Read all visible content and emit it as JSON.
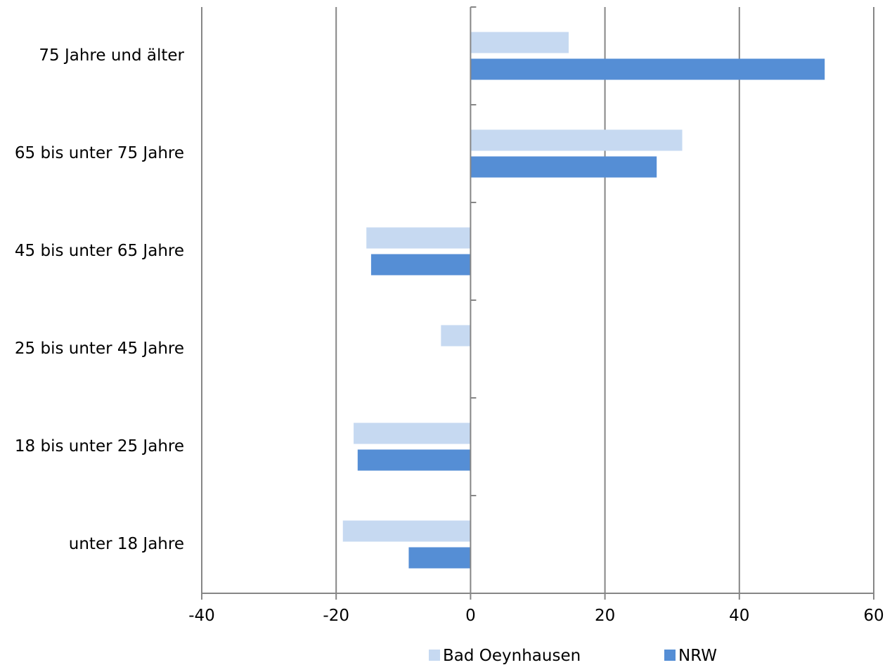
{
  "chart_data": {
    "type": "bar",
    "orientation": "horizontal",
    "categories": [
      "unter 18 Jahre",
      "18 bis unter 25 Jahre",
      "25 bis unter 45 Jahre",
      "45 bis unter 65 Jahre",
      "65 bis unter 75 Jahre",
      "75 Jahre und älter"
    ],
    "series": [
      {
        "name": "Bad Oeynhausen",
        "color": "#c6d9f1",
        "values": [
          -19.0,
          -17.4,
          -4.4,
          -15.5,
          31.5,
          14.6
        ]
      },
      {
        "name": "NRW",
        "color": "#558ed5",
        "values": [
          -9.2,
          -16.8,
          0.0,
          -14.8,
          27.7,
          52.7
        ]
      }
    ],
    "xlim": [
      -40,
      60
    ],
    "xticks": [
      -40,
      -20,
      0,
      20,
      40,
      60
    ],
    "tick_labels": [
      "-40",
      "-20",
      "0",
      "20",
      "40",
      "60"
    ],
    "grid": "vertical",
    "legend_position": "bottom",
    "axis_color": "#868686",
    "title": "",
    "xlabel": "",
    "ylabel": ""
  }
}
